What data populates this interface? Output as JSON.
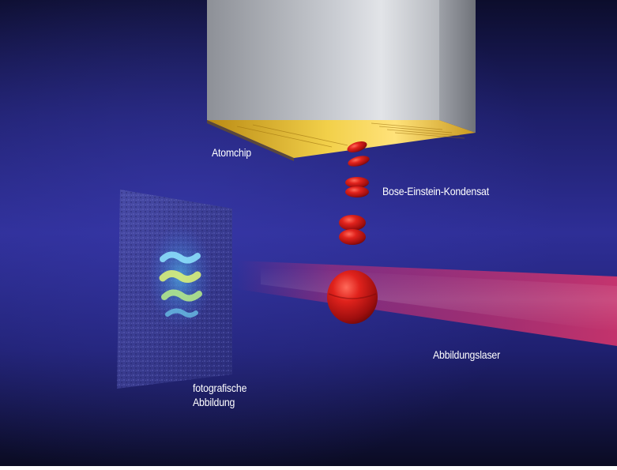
{
  "labels": {
    "atomchip": "Atomchip",
    "condensate": "Bose-Einstein-Kondensat",
    "imaging_laser": "Abbildungslaser",
    "photo_line1": "fotografische",
    "photo_line2": "Abbildung"
  },
  "colors": {
    "background_top": "#0c0d2c",
    "background_mid": "#2e2e96",
    "background_bottom": "#0a0b22",
    "chip_body": "#b9bcc2",
    "chip_gold": "#e8c23a",
    "condensate_red": "#c81818",
    "laser_beam": "#d2326e"
  }
}
